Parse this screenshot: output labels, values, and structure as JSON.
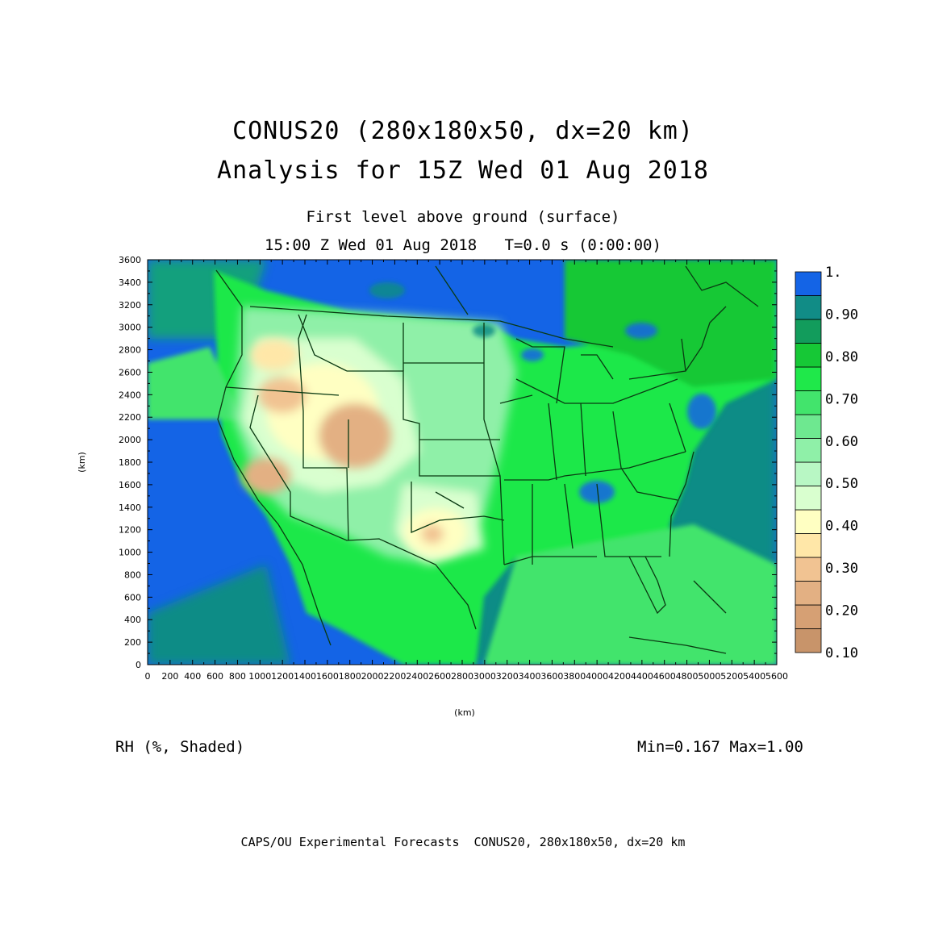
{
  "title": {
    "line1": "CONUS20 (280x180x50, dx=20 km)",
    "line2": "Analysis for 15Z Wed 01 Aug 2018"
  },
  "subtitle": {
    "line1": "First level above ground (surface)",
    "line2": "15:00 Z Wed 01 Aug 2018   T=0.0 s (0:00:00)"
  },
  "axes": {
    "xlabel": "(km)",
    "ylabel": "(km)",
    "xlim": [
      0,
      5600
    ],
    "ylim": [
      0,
      3600
    ],
    "xticks": [
      "0",
      "200",
      "400",
      "600",
      "800",
      "1000",
      "1200",
      "1400",
      "1600",
      "1800",
      "2000",
      "2200",
      "2400",
      "2600",
      "2800",
      "3000",
      "3200",
      "3400",
      "3600",
      "3800",
      "4000",
      "4200",
      "4400",
      "4600",
      "4800",
      "5000",
      "5200",
      "5400",
      "5600"
    ],
    "yticks": [
      "0",
      "200",
      "400",
      "600",
      "800",
      "1000",
      "1200",
      "1400",
      "1600",
      "1800",
      "2000",
      "2200",
      "2400",
      "2600",
      "2800",
      "3000",
      "3200",
      "3400",
      "3600"
    ]
  },
  "colorbar": {
    "bands": [
      {
        "color": "#c8946a"
      },
      {
        "color": "#d6a074"
      },
      {
        "color": "#e3b083"
      },
      {
        "color": "#f1c392"
      },
      {
        "color": "#ffe7a8"
      },
      {
        "color": "#ffffc2"
      },
      {
        "color": "#d9ffcf"
      },
      {
        "color": "#b8f7c4"
      },
      {
        "color": "#8ff0a8"
      },
      {
        "color": "#6ee890"
      },
      {
        "color": "#42e46c"
      },
      {
        "color": "#1fe84a"
      },
      {
        "color": "#16c836"
      },
      {
        "color": "#129c5c"
      },
      {
        "color": "#118c86"
      },
      {
        "color": "#1464e6"
      }
    ],
    "labels": [
      "0.10",
      "0.20",
      "0.30",
      "0.40",
      "0.50",
      "0.60",
      "0.70",
      "0.80",
      "0.90",
      "1."
    ]
  },
  "variable_label": "RH (%, Shaded)",
  "minmax": "Min=0.167 Max=1.00",
  "footer": "CAPS/OU Experimental Forecasts  CONUS20, 280x180x50, dx=20 km",
  "colors": {
    "ocean": "#1464e6",
    "ocean_teal": "#118c86",
    "land_green": "#1fe84a",
    "borders": "#0a3a12"
  }
}
